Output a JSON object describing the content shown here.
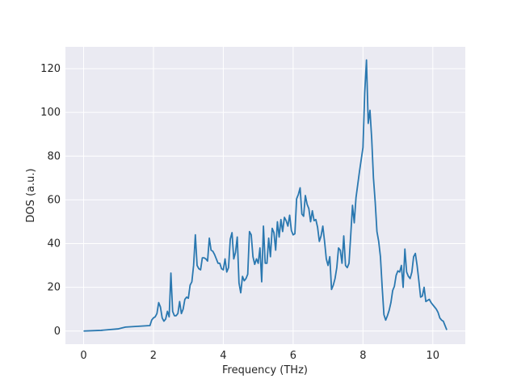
{
  "chart_data": {
    "type": "line",
    "xlabel": "Frequency (THz)",
    "ylabel": "DOS (a.u.)",
    "color": "#2a78b0",
    "grid": true,
    "xlim": [
      -0.52,
      10.93
    ],
    "ylim": [
      -6,
      130
    ],
    "xticks": [
      0,
      2,
      4,
      6,
      8,
      10
    ],
    "yticks": [
      0,
      20,
      40,
      60,
      80,
      100,
      120
    ],
    "x": [
      0,
      0.5,
      1.0,
      1.2,
      1.9,
      1.95,
      2.0,
      2.05,
      2.1,
      2.15,
      2.2,
      2.25,
      2.3,
      2.35,
      2.4,
      2.45,
      2.5,
      2.55,
      2.6,
      2.65,
      2.7,
      2.75,
      2.8,
      2.85,
      2.9,
      2.95,
      3.0,
      3.05,
      3.1,
      3.15,
      3.2,
      3.25,
      3.3,
      3.35,
      3.4,
      3.45,
      3.5,
      3.55,
      3.6,
      3.65,
      3.7,
      3.75,
      3.8,
      3.85,
      3.9,
      3.95,
      4.0,
      4.05,
      4.1,
      4.15,
      4.2,
      4.25,
      4.3,
      4.35,
      4.4,
      4.45,
      4.5,
      4.55,
      4.6,
      4.65,
      4.7,
      4.75,
      4.8,
      4.85,
      4.9,
      4.95,
      5.0,
      5.05,
      5.1,
      5.15,
      5.2,
      5.25,
      5.3,
      5.35,
      5.4,
      5.45,
      5.5,
      5.55,
      5.6,
      5.65,
      5.7,
      5.75,
      5.8,
      5.85,
      5.9,
      5.95,
      6.0,
      6.05,
      6.1,
      6.15,
      6.2,
      6.25,
      6.3,
      6.35,
      6.4,
      6.45,
      6.5,
      6.55,
      6.6,
      6.65,
      6.7,
      6.75,
      6.8,
      6.85,
      6.9,
      6.95,
      7.0,
      7.05,
      7.1,
      7.15,
      7.2,
      7.25,
      7.3,
      7.35,
      7.4,
      7.45,
      7.5,
      7.55,
      7.6,
      7.65,
      7.7,
      7.75,
      7.8,
      7.85,
      7.9,
      7.95,
      8.0,
      8.05,
      8.1,
      8.15,
      8.2,
      8.25,
      8.3,
      8.35,
      8.4,
      8.45,
      8.5,
      8.55,
      8.6,
      8.65,
      8.7,
      8.75,
      8.8,
      8.85,
      8.9,
      8.95,
      9.0,
      9.05,
      9.1,
      9.15,
      9.2,
      9.25,
      9.3,
      9.35,
      9.4,
      9.45,
      9.5,
      9.55,
      9.6,
      9.65,
      9.7,
      9.75,
      9.8,
      9.85,
      9.9,
      9.95,
      10.0,
      10.05,
      10.1,
      10.15,
      10.2,
      10.25,
      10.3,
      10.35,
      10.4
    ],
    "values": [
      0,
      0.3,
      1,
      1.8,
      2.5,
      5,
      6,
      6.5,
      8,
      13,
      11,
      6,
      4.5,
      5.5,
      9,
      6.5,
      26.5,
      9,
      7,
      7,
      8,
      13.5,
      8,
      10,
      14.5,
      15.5,
      15,
      21,
      22.5,
      30,
      44,
      30,
      28.5,
      28,
      33.5,
      33.5,
      33,
      32,
      42.5,
      37,
      36.5,
      35,
      33,
      31,
      31,
      28.5,
      28,
      33,
      27,
      29,
      42,
      45,
      33,
      36,
      43,
      22,
      17.5,
      25,
      23,
      24,
      26,
      45.5,
      44,
      34,
      30.5,
      33,
      31,
      38,
      22.5,
      48,
      31,
      31,
      42.5,
      34,
      47,
      45,
      37,
      50,
      43,
      51,
      45.5,
      52,
      50.5,
      48,
      53,
      46,
      44,
      44.5,
      60.5,
      62.5,
      65.5,
      53.5,
      52.5,
      62,
      58,
      56,
      50,
      55,
      50.5,
      51,
      47.5,
      41,
      43.5,
      48,
      41,
      33,
      30,
      34,
      19,
      21,
      24,
      29,
      38,
      37,
      31,
      43.5,
      30,
      29,
      31,
      44,
      57.5,
      49.5,
      61,
      67,
      73,
      78.5,
      84,
      109,
      124,
      95,
      101,
      88,
      70,
      59,
      45.5,
      41,
      34,
      20,
      7.5,
      5,
      7,
      9.5,
      13,
      18.5,
      20.5,
      25.5,
      27.5,
      27,
      30,
      20,
      37.5,
      27,
      25,
      24,
      27,
      34,
      35.5,
      30,
      23,
      15.5,
      16,
      20,
      13.5,
      14,
      14.5,
      13,
      12,
      11,
      10,
      8.5,
      6,
      5,
      4.5,
      2.5,
      0.5
    ]
  }
}
